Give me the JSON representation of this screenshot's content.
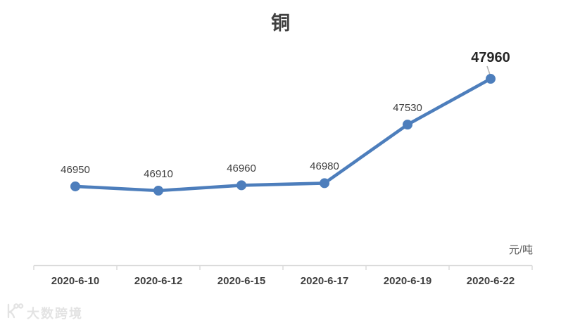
{
  "chart_data": {
    "type": "line",
    "title": "铜",
    "unit": "元/吨",
    "categories": [
      "2020-6-10",
      "2020-6-12",
      "2020-6-15",
      "2020-6-17",
      "2020-6-19",
      "2020-6-22"
    ],
    "values": [
      46950,
      46910,
      46960,
      46980,
      47530,
      47960
    ],
    "series": [
      {
        "name": "铜",
        "values": [
          46950,
          46910,
          46960,
          46980,
          47530,
          47960
        ]
      }
    ],
    "xlabel": "",
    "ylabel": "",
    "legend_position": "none",
    "grid": false,
    "data_labels_shown": true,
    "highlight_last_label": true,
    "colors": {
      "line": "#4d7ebc",
      "marker": "#4d7ebc",
      "axis": "#d9d9d9",
      "leader": "#b3b3b3",
      "data_label": "#404040",
      "final_label": "#262626"
    }
  },
  "watermark": {
    "icon": "dashu-logo-icon",
    "text": "大数跨境"
  }
}
